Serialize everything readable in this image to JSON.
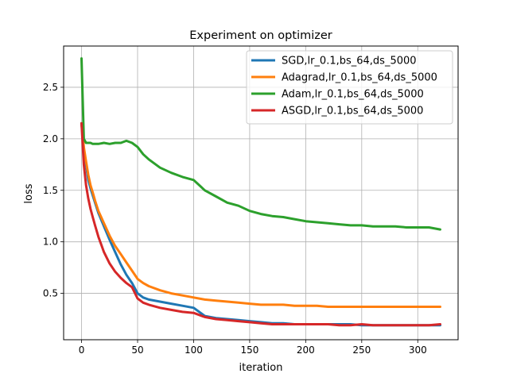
{
  "chart_data": {
    "type": "line",
    "title": "Experiment on optimizer",
    "xlabel": "iteration",
    "ylabel": "loss",
    "xlim": [
      -16,
      336
    ],
    "ylim": [
      0.05,
      2.9
    ],
    "xticks": [
      0,
      50,
      100,
      150,
      200,
      250,
      300
    ],
    "yticks": [
      0.5,
      1.0,
      1.5,
      2.0,
      2.5
    ],
    "grid": true,
    "legend_position": "top-right",
    "x": [
      0,
      2,
      4,
      6,
      8,
      10,
      12,
      15,
      20,
      25,
      30,
      35,
      40,
      45,
      50,
      55,
      60,
      70,
      80,
      90,
      100,
      110,
      120,
      130,
      140,
      150,
      160,
      170,
      180,
      190,
      200,
      210,
      220,
      230,
      240,
      250,
      260,
      270,
      280,
      290,
      300,
      310,
      320
    ],
    "series": [
      {
        "name": "SGD,lr_0.1,bs_64,ds_5000",
        "color": "#1f77b4",
        "values": [
          2.15,
          1.9,
          1.75,
          1.6,
          1.52,
          1.45,
          1.38,
          1.28,
          1.15,
          1.02,
          0.9,
          0.78,
          0.68,
          0.6,
          0.5,
          0.46,
          0.44,
          0.42,
          0.4,
          0.38,
          0.36,
          0.28,
          0.26,
          0.25,
          0.24,
          0.23,
          0.22,
          0.21,
          0.21,
          0.2,
          0.2,
          0.2,
          0.2,
          0.2,
          0.2,
          0.19,
          0.19,
          0.19,
          0.19,
          0.19,
          0.19,
          0.19,
          0.19
        ]
      },
      {
        "name": "Adagrad,lr_0.1,bs_64,ds_5000",
        "color": "#ff7f0e",
        "values": [
          2.15,
          1.92,
          1.78,
          1.65,
          1.55,
          1.48,
          1.4,
          1.3,
          1.18,
          1.06,
          0.96,
          0.88,
          0.8,
          0.72,
          0.64,
          0.6,
          0.57,
          0.53,
          0.5,
          0.48,
          0.46,
          0.44,
          0.43,
          0.42,
          0.41,
          0.4,
          0.39,
          0.39,
          0.39,
          0.38,
          0.38,
          0.38,
          0.37,
          0.37,
          0.37,
          0.37,
          0.37,
          0.37,
          0.37,
          0.37,
          0.37,
          0.37,
          0.37
        ]
      },
      {
        "name": "Adam,lr_0.1,bs_64,ds_5000",
        "color": "#2ca02c",
        "values": [
          2.78,
          2.0,
          1.96,
          1.96,
          1.96,
          1.95,
          1.95,
          1.95,
          1.96,
          1.95,
          1.96,
          1.96,
          1.98,
          1.96,
          1.92,
          1.85,
          1.8,
          1.72,
          1.67,
          1.63,
          1.6,
          1.5,
          1.44,
          1.38,
          1.35,
          1.3,
          1.27,
          1.25,
          1.24,
          1.22,
          1.2,
          1.19,
          1.18,
          1.17,
          1.16,
          1.16,
          1.15,
          1.15,
          1.15,
          1.14,
          1.14,
          1.14,
          1.12
        ]
      },
      {
        "name": "ASGD,lr_0.1,bs_64,ds_5000",
        "color": "#d62728",
        "values": [
          2.15,
          1.75,
          1.55,
          1.42,
          1.32,
          1.24,
          1.16,
          1.05,
          0.9,
          0.79,
          0.71,
          0.65,
          0.6,
          0.56,
          0.45,
          0.41,
          0.39,
          0.36,
          0.34,
          0.32,
          0.31,
          0.27,
          0.25,
          0.24,
          0.23,
          0.22,
          0.21,
          0.2,
          0.2,
          0.2,
          0.2,
          0.2,
          0.2,
          0.19,
          0.19,
          0.2,
          0.19,
          0.19,
          0.19,
          0.19,
          0.19,
          0.19,
          0.2
        ]
      }
    ]
  }
}
